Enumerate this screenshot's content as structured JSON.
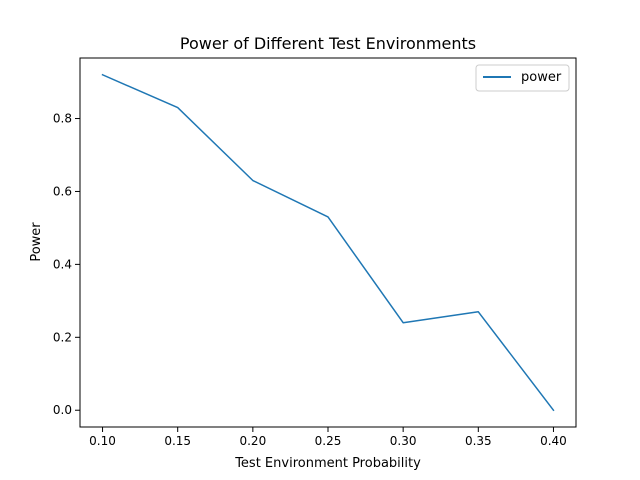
{
  "chart_data": {
    "type": "line",
    "title": "Power of Different Test Environments",
    "xlabel": "Test Environment Probability",
    "ylabel": "Power",
    "x": [
      0.1,
      0.15,
      0.2,
      0.25,
      0.3,
      0.35,
      0.4
    ],
    "series": [
      {
        "name": "power",
        "values": [
          0.92,
          0.83,
          0.63,
          0.53,
          0.24,
          0.27,
          0.0
        ],
        "color": "#1f77b4"
      }
    ],
    "xlim": [
      0.085,
      0.415
    ],
    "ylim": [
      -0.046,
      0.966
    ],
    "xticks": [
      0.1,
      0.15,
      0.2,
      0.25,
      0.3,
      0.35,
      0.4
    ],
    "xtick_labels": [
      "0.10",
      "0.15",
      "0.20",
      "0.25",
      "0.30",
      "0.35",
      "0.40"
    ],
    "yticks": [
      0.0,
      0.2,
      0.4,
      0.6,
      0.8
    ],
    "ytick_labels": [
      "0.0",
      "0.2",
      "0.4",
      "0.6",
      "0.8"
    ],
    "grid": false,
    "legend_position": "top-right"
  }
}
